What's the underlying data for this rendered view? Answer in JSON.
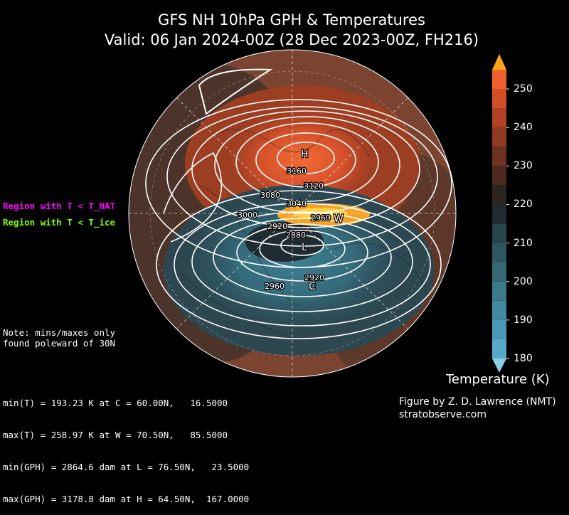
{
  "title": {
    "line1": "GFS NH 10hPa GPH & Temperatures",
    "line2": "Valid: 06 Jan 2024-00Z  (28 Dec 2023-00Z, FH216)"
  },
  "legend": {
    "nat": "Region with T < T_NAT",
    "ice": "Region with T < T_ice"
  },
  "note": "Note: mins/maxes only\nfound poleward of 30N",
  "stats": [
    "min(T) = 193.23 K at C = 60.00N,   16.5000",
    "max(T) = 258.97 K at W = 70.50N,   85.5000",
    "min(GPH) = 2864.6 dam at L = 76.50N,   23.5000",
    "max(GPH) = 3178.8 dam at H = 64.50N,  167.0000"
  ],
  "credit": {
    "line1": "Figure by Z. D. Lawrence (NMT)",
    "line2": "stratobserve.com"
  },
  "colorbar": {
    "title": "Temperature (K)",
    "ticks": [
      250,
      240,
      230,
      220,
      210,
      200,
      190,
      180
    ],
    "range": [
      180,
      255
    ],
    "bands": [
      {
        "from": 180,
        "to": 185,
        "color": "#56a9c8"
      },
      {
        "from": 185,
        "to": 190,
        "color": "#4b98b6"
      },
      {
        "from": 190,
        "to": 195,
        "color": "#43899f"
      },
      {
        "from": 195,
        "to": 200,
        "color": "#3c798b"
      },
      {
        "from": 200,
        "to": 205,
        "color": "#346875"
      },
      {
        "from": 205,
        "to": 210,
        "color": "#2d5661"
      },
      {
        "from": 210,
        "to": 215,
        "color": "#26454d"
      },
      {
        "from": 215,
        "to": 220,
        "color": "#202b30"
      },
      {
        "from": 220,
        "to": 225,
        "color": "#2b2421"
      },
      {
        "from": 225,
        "to": 230,
        "color": "#4d2a1e"
      },
      {
        "from": 230,
        "to": 235,
        "color": "#6e3220"
      },
      {
        "from": 235,
        "to": 240,
        "color": "#8f3a22"
      },
      {
        "from": 240,
        "to": 245,
        "color": "#b04324"
      },
      {
        "from": 245,
        "to": 250,
        "color": "#d14e27"
      },
      {
        "from": 250,
        "to": 255,
        "color": "#f0602e"
      }
    ],
    "extend_low_color": "#8ecfe6",
    "extend_high_color": "#ffa21a"
  },
  "markers": {
    "H": "H",
    "L": "L",
    "W": "W",
    "C": "C"
  },
  "contour_labels": [
    "3160",
    "3120",
    "3080",
    "3040",
    "3000",
    "2960",
    "2920",
    "2880",
    "2920",
    "2960"
  ],
  "colors": {
    "nat": "#ff00ff",
    "ice": "#7fff00",
    "warm": "#e85a2a",
    "cold": "#3e7f94",
    "neutral": "#6b3e2b"
  }
}
